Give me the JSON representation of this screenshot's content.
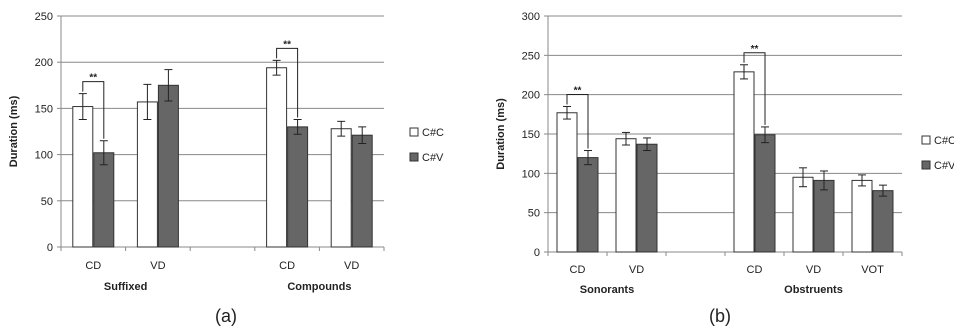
{
  "chart_data": [
    {
      "type": "bar",
      "panel_label": "(a)",
      "ylabel": "Duration (ms)",
      "ylim": [
        0,
        250
      ],
      "yticks": [
        0,
        50,
        100,
        150,
        200,
        250
      ],
      "grid": true,
      "legend_position": "right",
      "groups": [
        {
          "label": "Suffixed",
          "categories": [
            "CD",
            "VD"
          ]
        },
        {
          "label": "Compounds",
          "categories": [
            "CD",
            "VD"
          ]
        }
      ],
      "categories": [
        "CD",
        "VD",
        "",
        "CD",
        "VD"
      ],
      "series": [
        {
          "name": "C#C",
          "values": [
            152,
            157,
            null,
            194,
            128
          ],
          "errors": [
            14,
            19,
            null,
            8,
            8
          ]
        },
        {
          "name": "C#V",
          "values": [
            102,
            175,
            null,
            130,
            121
          ],
          "errors": [
            13,
            17,
            null,
            8,
            9
          ]
        }
      ],
      "annotations": [
        {
          "text": "**",
          "category_index": 0
        },
        {
          "text": "**",
          "category_index": 3
        }
      ]
    },
    {
      "type": "bar",
      "panel_label": "(b)",
      "ylabel": "Duration (ms)",
      "ylim": [
        0,
        300
      ],
      "yticks": [
        0,
        50,
        100,
        150,
        200,
        250,
        300
      ],
      "grid": true,
      "legend_position": "right",
      "groups": [
        {
          "label": "Sonorants",
          "categories": [
            "CD",
            "VD"
          ]
        },
        {
          "label": "Obstruents",
          "categories": [
            "CD",
            "VD",
            "VOT"
          ]
        }
      ],
      "categories": [
        "CD",
        "VD",
        "",
        "CD",
        "VD",
        "VOT"
      ],
      "series": [
        {
          "name": "C#C",
          "values": [
            177,
            144,
            null,
            229,
            95,
            91
          ],
          "errors": [
            8,
            8,
            null,
            9,
            12,
            7
          ]
        },
        {
          "name": "C#V",
          "values": [
            120,
            137,
            null,
            149,
            91,
            78
          ],
          "errors": [
            9,
            8,
            null,
            10,
            12,
            7
          ]
        }
      ],
      "annotations": [
        {
          "text": "**",
          "category_index": 0
        },
        {
          "text": "**",
          "category_index": 3
        }
      ]
    }
  ],
  "colors": {
    "c_c": "#ffffff",
    "c_v": "#666666",
    "axis": "#888888",
    "grid": "#888888",
    "outline": "#333333"
  }
}
